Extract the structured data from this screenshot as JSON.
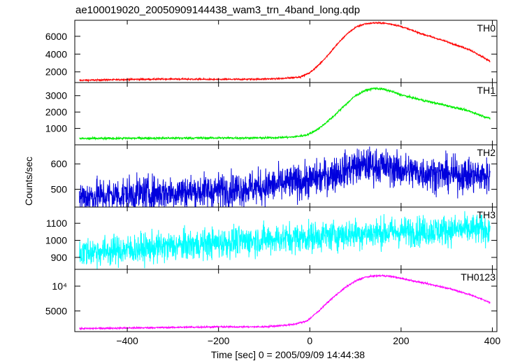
{
  "chart_data": {
    "type": "line",
    "title": "ae100019020_20050909144438_wam3_trn_4band_long.qdp",
    "xlabel": "Time [sec] 0 = 2005/09/09 14:44:38",
    "ylabel": "Counts/sec",
    "xlim": [
      -515,
      410
    ],
    "x_ticks": [
      -400,
      -200,
      0,
      200,
      400
    ],
    "x_tick_labels": [
      "−400",
      "−200",
      "0",
      "200",
      "400"
    ],
    "grid": false,
    "series": [
      {
        "name": "TH0",
        "color": "#ff0000",
        "ylim": [
          800,
          7800
        ],
        "y_ticks": [
          2000,
          4000,
          6000
        ],
        "y_tick_labels": [
          "2000",
          "4000",
          "6000"
        ],
        "log": false,
        "x": [
          -505,
          -450,
          -400,
          -300,
          -200,
          -120,
          -60,
          -20,
          0,
          20,
          40,
          60,
          80,
          100,
          120,
          140,
          160,
          180,
          200,
          250,
          300,
          350,
          395
        ],
        "y": [
          1050,
          1100,
          1150,
          1200,
          1150,
          1180,
          1250,
          1450,
          1900,
          2800,
          3900,
          5100,
          6200,
          7000,
          7400,
          7500,
          7500,
          7350,
          7100,
          6200,
          5400,
          4500,
          3200
        ],
        "noise": 45
      },
      {
        "name": "TH1",
        "color": "#00ee00",
        "ylim": [
          0,
          3800
        ],
        "y_ticks": [
          1000,
          2000,
          3000
        ],
        "y_tick_labels": [
          "1000",
          "2000",
          "3000"
        ],
        "log": false,
        "x": [
          -505,
          -400,
          -300,
          -200,
          -100,
          -40,
          -10,
          0,
          20,
          40,
          60,
          80,
          100,
          120,
          140,
          160,
          180,
          200,
          250,
          300,
          350,
          395
        ],
        "y": [
          380,
          400,
          410,
          420,
          420,
          470,
          580,
          680,
          1000,
          1450,
          1950,
          2500,
          3000,
          3300,
          3450,
          3400,
          3250,
          3050,
          2700,
          2400,
          2050,
          1600
        ],
        "noise": 35
      },
      {
        "name": "TH2",
        "color": "#0000dd",
        "ylim": [
          430,
          675
        ],
        "y_ticks": [
          500,
          600
        ],
        "y_tick_labels": [
          "500",
          "600"
        ],
        "log": false,
        "x": [
          -505,
          -400,
          -300,
          -200,
          -100,
          0,
          50,
          100,
          130,
          160,
          200,
          250,
          300,
          350,
          395
        ],
        "y": [
          470,
          480,
          488,
          495,
          510,
          535,
          560,
          590,
          595,
          590,
          575,
          565,
          558,
          555,
          552
        ],
        "noise": 35
      },
      {
        "name": "TH3",
        "color": "#00ffff",
        "ylim": [
          830,
          1195
        ],
        "y_ticks": [
          900,
          1000,
          1100
        ],
        "y_tick_labels": [
          "900",
          "1000",
          "1100"
        ],
        "log": false,
        "x": [
          -505,
          -400,
          -300,
          -200,
          -100,
          0,
          100,
          200,
          300,
          395
        ],
        "y": [
          930,
          945,
          965,
          985,
          1005,
          1020,
          1040,
          1050,
          1060,
          1065
        ],
        "noise": 45
      },
      {
        "name": "TH0123",
        "color": "#ff00ff",
        "ylim": [
          2800,
          16000
        ],
        "y_ticks": [
          5000,
          10000
        ],
        "y_tick_labels": [
          "5000",
          "10⁴"
        ],
        "log": true,
        "x": [
          -505,
          -400,
          -300,
          -200,
          -100,
          -40,
          -10,
          0,
          20,
          40,
          60,
          80,
          100,
          120,
          140,
          160,
          180,
          200,
          250,
          300,
          350,
          395
        ],
        "y": [
          3050,
          3100,
          3150,
          3200,
          3200,
          3400,
          3700,
          4000,
          5000,
          6400,
          8000,
          9800,
          11500,
          12800,
          13300,
          13400,
          13100,
          12400,
          10900,
          9500,
          7900,
          6300
        ],
        "noise": 0.012
      }
    ]
  }
}
